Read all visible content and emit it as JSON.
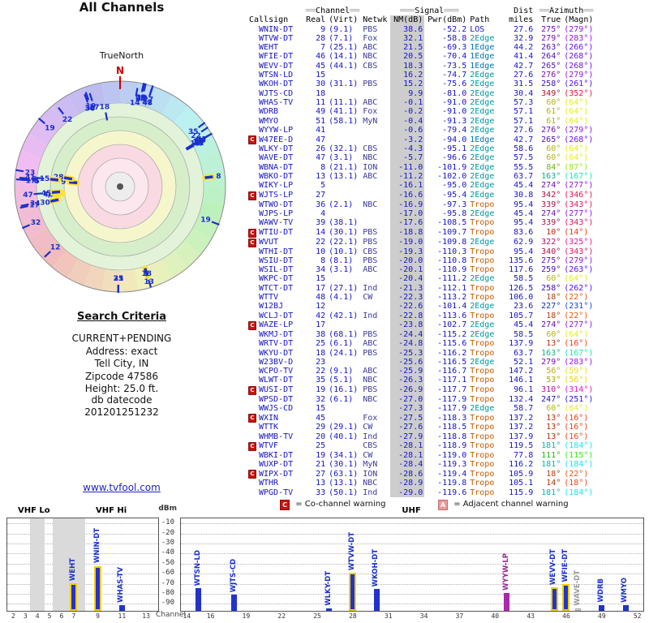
{
  "search_criteria": {
    "heading": "Search Criteria",
    "lines": [
      "CURRENT+PENDING",
      "Address: exact",
      "Tell City, IN",
      "Zipcode 47586",
      "Height: 25.0 ft."
    ],
    "db_label": "db datecode",
    "db_value": "201201251232",
    "link": "www.tvfool.com"
  },
  "legend": {
    "c_icon": "C",
    "c_text": "= Co-channel warning",
    "a_icon": "A",
    "a_text": "= Adjacent channel warning"
  },
  "colors": {
    "row_text": "#1515c8",
    "path": {
      "LOS": "#1515c8",
      "1Edge": "#0073b0",
      "2Edge": "#00979c",
      "Tropo": "#c85a00"
    },
    "bar": {
      "normal": "#2233cc",
      "strong": "#2233cc",
      "strong_outline": "#f2d000",
      "lp": "#a929a9",
      "faint": "#d8d8d8",
      "label_normal": "#1b2fd0",
      "label_lp": "#992299",
      "label_faint": "#999999"
    },
    "warning_red": "#cc1111",
    "warning_pink": "#ee9898"
  },
  "table": {
    "group_headers": {
      "channel": "══Channel══",
      "signal": "═══Signal═══",
      "dist": "Dist",
      "azimuth": "══Azimuth══"
    },
    "columns": [
      "Callsign",
      "Real",
      "(Virt)",
      "Netwk",
      "NM(dB)",
      "Pwr(dBm)",
      "Path",
      "miles",
      "True",
      "(Magn)"
    ],
    "rows": [
      {
        "c": "WNIN-DT",
        "r": "9",
        "v": "(9.1)",
        "n": "PBS",
        "nm": "38.6",
        "pw": "-52.2",
        "p": "LOS",
        "mi": "27.6",
        "az": "275°",
        "mg": "(279°)",
        "w": ""
      },
      {
        "c": "WTVW-DT",
        "r": "28",
        "v": "(7.1)",
        "n": "Fox",
        "nm": "32.1",
        "pw": "-58.8",
        "p": "2Edge",
        "mi": "32.9",
        "az": "279°",
        "mg": "(283°)",
        "w": ""
      },
      {
        "c": "WEHT",
        "r": "7",
        "v": "(25.1)",
        "n": "ABC",
        "nm": "21.5",
        "pw": "-69.3",
        "p": "1Edge",
        "mi": "44.2",
        "az": "263°",
        "mg": "(266°)",
        "w": ""
      },
      {
        "c": "WFIE-DT",
        "r": "46",
        "v": "(14.1)",
        "n": "NBC",
        "nm": "20.5",
        "pw": "-70.4",
        "p": "1Edge",
        "mi": "41.4",
        "az": "264°",
        "mg": "(268°)",
        "w": ""
      },
      {
        "c": "WEVV-DT",
        "r": "45",
        "v": "(44.1)",
        "n": "CBS",
        "nm": "18.3",
        "pw": "-73.5",
        "p": "1Edge",
        "mi": "42.7",
        "az": "265°",
        "mg": "(268°)",
        "w": ""
      },
      {
        "c": "WTSN-LD",
        "r": "15",
        "v": "",
        "n": "",
        "nm": "16.2",
        "pw": "-74.7",
        "p": "2Edge",
        "mi": "27.6",
        "az": "276°",
        "mg": "(279°)",
        "w": ""
      },
      {
        "c": "WKOH-DT",
        "r": "30",
        "v": "(31.1)",
        "n": "PBS",
        "nm": "15.2",
        "pw": "-75.6",
        "p": "2Edge",
        "mi": "31.5",
        "az": "258°",
        "mg": "(261°)",
        "w": ""
      },
      {
        "c": "WJTS-CD",
        "r": "18",
        "v": "",
        "n": "",
        "nm": "9.9",
        "pw": "-81.0",
        "p": "2Edge",
        "mi": "30.4",
        "az": "349°",
        "mg": "(352°)",
        "w": ""
      },
      {
        "c": "WHAS-TV",
        "r": "11",
        "v": "(11.1)",
        "n": "ABC",
        "nm": "-0.1",
        "pw": "-91.0",
        "p": "2Edge",
        "mi": "57.3",
        "az": "60°",
        "mg": "(64°)",
        "w": ""
      },
      {
        "c": "WDRB",
        "r": "49",
        "v": "(41.1)",
        "n": "Fox",
        "nm": "-0.2",
        "pw": "-91.0",
        "p": "2Edge",
        "mi": "57.1",
        "az": "61°",
        "mg": "(64°)",
        "w": ""
      },
      {
        "c": "WMYO",
        "r": "51",
        "v": "(58.1)",
        "n": "MyN",
        "nm": "-0.4",
        "pw": "-91.3",
        "p": "2Edge",
        "mi": "57.1",
        "az": "61°",
        "mg": "(64°)",
        "w": ""
      },
      {
        "c": "WYYW-LP",
        "r": "41",
        "v": "",
        "n": "",
        "nm": "-0.6",
        "pw": "-79.4",
        "p": "2Edge",
        "mi": "27.6",
        "az": "276°",
        "mg": "(279°)",
        "w": ""
      },
      {
        "c": "W47EE-D",
        "r": "47",
        "v": "",
        "n": "",
        "nm": "-3.2",
        "pw": "-94.0",
        "p": "1Edge",
        "mi": "42.7",
        "az": "265°",
        "mg": "(268°)",
        "w": "C"
      },
      {
        "c": "WLKY-DT",
        "r": "26",
        "v": "(32.1)",
        "n": "CBS",
        "nm": "-4.3",
        "pw": "-95.1",
        "p": "2Edge",
        "mi": "58.6",
        "az": "60°",
        "mg": "(64°)",
        "w": ""
      },
      {
        "c": "WAVE-DT",
        "r": "47",
        "v": "(3.1)",
        "n": "NBC",
        "nm": "-5.7",
        "pw": "-96.6",
        "p": "2Edge",
        "mi": "57.5",
        "az": "60°",
        "mg": "(64°)",
        "w": ""
      },
      {
        "c": "WBNA-DT",
        "r": "8",
        "v": "(21.1)",
        "n": "ION",
        "nm": "-11.0",
        "pw": "-101.9",
        "p": "2Edge",
        "mi": "55.5",
        "az": "84°",
        "mg": "(87°)",
        "w": ""
      },
      {
        "c": "WBKO-DT",
        "r": "13",
        "v": "(13.1)",
        "n": "ABC",
        "nm": "-11.2",
        "pw": "-102.0",
        "p": "2Edge",
        "mi": "63.7",
        "az": "163°",
        "mg": "(167°)",
        "w": ""
      },
      {
        "c": "WIKY-LP",
        "r": "5",
        "v": "",
        "n": "",
        "nm": "-16.1",
        "pw": "-95.0",
        "p": "2Edge",
        "mi": "45.4",
        "az": "274°",
        "mg": "(277°)",
        "w": ""
      },
      {
        "c": "WJTS-LP",
        "r": "27",
        "v": "",
        "n": "",
        "nm": "-16.6",
        "pw": "-95.4",
        "p": "2Edge",
        "mi": "30.8",
        "az": "342°",
        "mg": "(346°)",
        "w": "C"
      },
      {
        "c": "WTWO-DT",
        "r": "36",
        "v": "(2.1)",
        "n": "NBC",
        "nm": "-16.9",
        "pw": "-97.3",
        "p": "Tropo",
        "mi": "95.4",
        "az": "339°",
        "mg": "(343°)",
        "w": ""
      },
      {
        "c": "WJPS-LP",
        "r": "4",
        "v": "",
        "n": "",
        "nm": "-17.0",
        "pw": "-95.8",
        "p": "2Edge",
        "mi": "45.4",
        "az": "274°",
        "mg": "(277°)",
        "w": ""
      },
      {
        "c": "WAWV-TV",
        "r": "39",
        "v": "(38.1)",
        "n": "",
        "nm": "-17.6",
        "pw": "-108.5",
        "p": "Tropo",
        "mi": "95.4",
        "az": "339°",
        "mg": "(343°)",
        "w": ""
      },
      {
        "c": "WTIU-DT",
        "r": "14",
        "v": "(30.1)",
        "n": "PBS",
        "nm": "-18.8",
        "pw": "-109.7",
        "p": "Tropo",
        "mi": "83.6",
        "az": "10°",
        "mg": "(14°)",
        "w": "C"
      },
      {
        "c": "WVUT",
        "r": "22",
        "v": "(22.1)",
        "n": "PBS",
        "nm": "-19.0",
        "pw": "-109.8",
        "p": "2Edge",
        "mi": "62.9",
        "az": "322°",
        "mg": "(325°)",
        "w": "C"
      },
      {
        "c": "WTHI-DT",
        "r": "10",
        "v": "(10.1)",
        "n": "CBS",
        "nm": "-19.3",
        "pw": "-110.3",
        "p": "Tropo",
        "mi": "95.4",
        "az": "340°",
        "mg": "(343°)",
        "w": ""
      },
      {
        "c": "WSIU-DT",
        "r": "8",
        "v": "(8.1)",
        "n": "PBS",
        "nm": "-20.0",
        "pw": "-110.8",
        "p": "Tropo",
        "mi": "135.6",
        "az": "275°",
        "mg": "(279°)",
        "w": ""
      },
      {
        "c": "WSIL-DT",
        "r": "34",
        "v": "(3.1)",
        "n": "ABC",
        "nm": "-20.1",
        "pw": "-110.9",
        "p": "Tropo",
        "mi": "117.6",
        "az": "259°",
        "mg": "(263°)",
        "w": ""
      },
      {
        "c": "WKPC-DT",
        "r": "15",
        "v": "",
        "n": "",
        "nm": "-20.4",
        "pw": "-111.2",
        "p": "2Edge",
        "mi": "58.5",
        "az": "60°",
        "mg": "(64°)",
        "w": ""
      },
      {
        "c": "WTCT-DT",
        "r": "17",
        "v": "(27.1)",
        "n": "Ind",
        "nm": "-21.3",
        "pw": "-112.1",
        "p": "Tropo",
        "mi": "126.5",
        "az": "258°",
        "mg": "(262°)",
        "w": ""
      },
      {
        "c": "WTTV",
        "r": "48",
        "v": "(4.1)",
        "n": "CW",
        "nm": "-22.3",
        "pw": "-113.2",
        "p": "Tropo",
        "mi": "106.0",
        "az": "18°",
        "mg": "(22°)",
        "w": ""
      },
      {
        "c": "W12BJ",
        "r": "12",
        "v": "",
        "n": "",
        "nm": "-22.6",
        "pw": "-101.4",
        "p": "2Edge",
        "mi": "23.6",
        "az": "227°",
        "mg": "(231°)",
        "w": ""
      },
      {
        "c": "WCLJ-DT",
        "r": "42",
        "v": "(42.1)",
        "n": "Ind",
        "nm": "-22.8",
        "pw": "-113.6",
        "p": "Tropo",
        "mi": "105.7",
        "az": "18°",
        "mg": "(22°)",
        "w": ""
      },
      {
        "c": "WAZE-LP",
        "r": "17",
        "v": "",
        "n": "",
        "nm": "-23.8",
        "pw": "-102.7",
        "p": "2Edge",
        "mi": "45.4",
        "az": "274°",
        "mg": "(277°)",
        "w": "C"
      },
      {
        "c": "WKMJ-DT",
        "r": "38",
        "v": "(68.1)",
        "n": "PBS",
        "nm": "-24.4",
        "pw": "-115.2",
        "p": "2Edge",
        "mi": "58.5",
        "az": "60°",
        "mg": "(64°)",
        "w": ""
      },
      {
        "c": "WRTV-DT",
        "r": "25",
        "v": "(6.1)",
        "n": "ABC",
        "nm": "-24.8",
        "pw": "-115.6",
        "p": "Tropo",
        "mi": "137.9",
        "az": "13°",
        "mg": "(16°)",
        "w": ""
      },
      {
        "c": "WKYU-DT",
        "r": "18",
        "v": "(24.1)",
        "n": "PBS",
        "nm": "-25.3",
        "pw": "-116.2",
        "p": "Tropo",
        "mi": "63.7",
        "az": "163°",
        "mg": "(167°)",
        "w": ""
      },
      {
        "c": "W23BV-D",
        "r": "23",
        "v": "",
        "n": "",
        "nm": "-25.6",
        "pw": "-116.5",
        "p": "2Edge",
        "mi": "52.1",
        "az": "279°",
        "mg": "(283°)",
        "w": ""
      },
      {
        "c": "WCPO-TV",
        "r": "22",
        "v": "(9.1)",
        "n": "ABC",
        "nm": "-25.9",
        "pw": "-116.7",
        "p": "Tropo",
        "mi": "147.2",
        "az": "56°",
        "mg": "(59°)",
        "w": ""
      },
      {
        "c": "WLWT-DT",
        "r": "35",
        "v": "(5.1)",
        "n": "NBC",
        "nm": "-26.3",
        "pw": "-117.1",
        "p": "Tropo",
        "mi": "146.1",
        "az": "53°",
        "mg": "(56°)",
        "w": ""
      },
      {
        "c": "WUSI-DT",
        "r": "19",
        "v": "(16.1)",
        "n": "PBS",
        "nm": "-26.9",
        "pw": "-117.7",
        "p": "Tropo",
        "mi": "96.1",
        "az": "310°",
        "mg": "(314°)",
        "w": "C"
      },
      {
        "c": "WPSD-DT",
        "r": "32",
        "v": "(6.1)",
        "n": "NBC",
        "nm": "-27.0",
        "pw": "-117.9",
        "p": "Tropo",
        "mi": "132.4",
        "az": "247°",
        "mg": "(251°)",
        "w": ""
      },
      {
        "c": "WWJS-CD",
        "r": "15",
        "v": "",
        "n": "",
        "nm": "-27.3",
        "pw": "-117.9",
        "p": "2Edge",
        "mi": "58.7",
        "az": "60°",
        "mg": "(64°)",
        "w": ""
      },
      {
        "c": "WXIN",
        "r": "45",
        "v": "",
        "n": "Fox",
        "nm": "-27.5",
        "pw": "-118.3",
        "p": "Tropo",
        "mi": "137.2",
        "az": "13°",
        "mg": "(16°)",
        "w": "C"
      },
      {
        "c": "WTTK",
        "r": "29",
        "v": "(29.1)",
        "n": "CW",
        "nm": "-27.6",
        "pw": "-118.5",
        "p": "Tropo",
        "mi": "137.2",
        "az": "13°",
        "mg": "(16°)",
        "w": ""
      },
      {
        "c": "WHMB-TV",
        "r": "20",
        "v": "(40.1)",
        "n": "Ind",
        "nm": "-27.9",
        "pw": "-118.8",
        "p": "Tropo",
        "mi": "137.9",
        "az": "13°",
        "mg": "(16°)",
        "w": ""
      },
      {
        "c": "WTVF",
        "r": "25",
        "v": "",
        "n": "CBS",
        "nm": "-28.1",
        "pw": "-118.9",
        "p": "Tropo",
        "mi": "119.5",
        "az": "181°",
        "mg": "(184°)",
        "w": "C"
      },
      {
        "c": "WBKI-DT",
        "r": "19",
        "v": "(34.1)",
        "n": "CW",
        "nm": "-28.1",
        "pw": "-119.0",
        "p": "Tropo",
        "mi": "77.8",
        "az": "111°",
        "mg": "(115°)",
        "w": ""
      },
      {
        "c": "WUXP-DT",
        "r": "21",
        "v": "(30.1)",
        "n": "MyN",
        "nm": "-28.4",
        "pw": "-119.3",
        "p": "Tropo",
        "mi": "116.2",
        "az": "181°",
        "mg": "(184°)",
        "w": ""
      },
      {
        "c": "WIPX-DT",
        "r": "27",
        "v": "(63.1)",
        "n": "ION",
        "nm": "-28.6",
        "pw": "-119.4",
        "p": "Tropo",
        "mi": "105.9",
        "az": "18°",
        "mg": "(22°)",
        "w": "C"
      },
      {
        "c": "WTHR",
        "r": "13",
        "v": "(13.1)",
        "n": "NBC",
        "nm": "-28.9",
        "pw": "-119.8",
        "p": "Tropo",
        "mi": "105.1",
        "az": "14°",
        "mg": "(18°)",
        "w": ""
      },
      {
        "c": "WPGD-TV",
        "r": "33",
        "v": "(50.1)",
        "n": "Ind",
        "nm": "-29.0",
        "pw": "-119.6",
        "p": "Tropo",
        "mi": "115.9",
        "az": "181°",
        "mg": "(184°)",
        "w": ""
      }
    ]
  },
  "radar_highlight": [
    "WNIN-DT",
    "WTVW-DT",
    "WEHT",
    "WFIE-DT",
    "WEVV-DT",
    "WTSN-LD",
    "WKOH-DT",
    "WBNA-DT",
    "WBKO-DT"
  ],
  "chart_data": [
    {
      "type": "scatter",
      "title": "All Channels",
      "north_label": "TrueNorth",
      "north_marker": "N",
      "note": "Polar radar plot: every station in table.rows is plotted by True azimuth (angle from north) and NM(dB) signal margin (radius; stronger = nearer center)."
    },
    {
      "type": "bar",
      "title": "Signal strength by RF channel",
      "ylabel": "dBm",
      "xlabel": "Channel",
      "ylim": [
        -97,
        -5
      ],
      "yticks": [
        -10,
        -20,
        -30,
        -40,
        -50,
        -60,
        -70,
        -80,
        -90
      ],
      "sections": [
        {
          "label": "VHF Lo"
        },
        {
          "label": "VHF Hi"
        },
        {
          "label": "UHF"
        }
      ],
      "vhf_xticks": [
        2,
        3,
        4,
        5,
        6,
        7,
        9,
        11,
        13
      ],
      "uhf_xticks": [
        14,
        16,
        19,
        22,
        25,
        28,
        31,
        34,
        37,
        40,
        43,
        46,
        49,
        52
      ],
      "bars": [
        {
          "label": "WEHT",
          "ch": 7,
          "dbm": -69.3,
          "style": "strong",
          "band": "vhf"
        },
        {
          "label": "WNIN-DT",
          "ch": 9,
          "dbm": -52.2,
          "style": "strong",
          "band": "vhf"
        },
        {
          "label": "WHAS-TV",
          "ch": 11,
          "dbm": -91.0,
          "style": "normal",
          "band": "vhf"
        },
        {
          "label": "WTSN-LD",
          "ch": 15,
          "dbm": -74.7,
          "style": "normal",
          "band": "uhf"
        },
        {
          "label": "WJTS-CD",
          "ch": 18,
          "dbm": -81.0,
          "style": "normal",
          "band": "uhf"
        },
        {
          "label": "WLKY-DT",
          "ch": 26,
          "dbm": -95.1,
          "style": "normal",
          "band": "uhf"
        },
        {
          "label": "WTVW-DT",
          "ch": 28,
          "dbm": -58.8,
          "style": "strong",
          "band": "uhf"
        },
        {
          "label": "WKOH-DT",
          "ch": 30,
          "dbm": -75.6,
          "style": "normal",
          "band": "uhf"
        },
        {
          "label": "WYYW-LP",
          "ch": 41,
          "dbm": -79.4,
          "style": "lp",
          "band": "uhf"
        },
        {
          "label": "WEVV-DT",
          "ch": 45,
          "dbm": -73.5,
          "style": "strong",
          "band": "uhf"
        },
        {
          "label": "WFIE-DT",
          "ch": 46,
          "dbm": -70.4,
          "style": "strong",
          "band": "uhf"
        },
        {
          "label": "WAVE-DT",
          "ch": 47,
          "dbm": -96.6,
          "style": "faint",
          "band": "uhf"
        },
        {
          "label": "WDRB",
          "ch": 49,
          "dbm": -91.0,
          "style": "normal",
          "band": "uhf"
        },
        {
          "label": "WMYO",
          "ch": 51,
          "dbm": -91.3,
          "style": "normal",
          "band": "uhf"
        }
      ]
    }
  ]
}
